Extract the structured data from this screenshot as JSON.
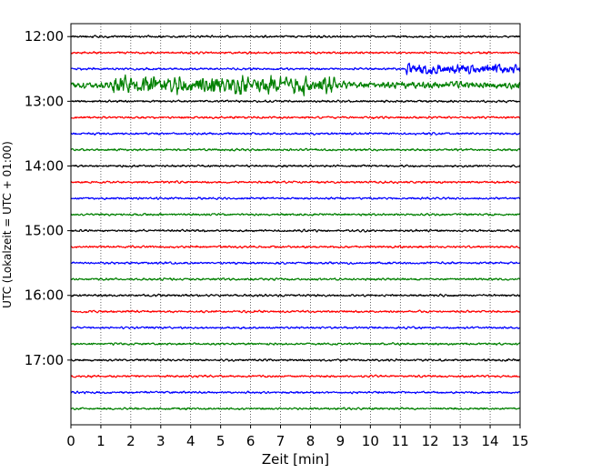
{
  "chart_data": {
    "type": "line",
    "title": "",
    "xlabel": "Zeit  [min]",
    "ylabel": "UTC (Lokalzeit = UTC + 01:00)",
    "xlim": [
      0,
      15
    ],
    "x_ticks": [
      "0",
      "1",
      "2",
      "3",
      "4",
      "5",
      "6",
      "7",
      "8",
      "9",
      "10",
      "11",
      "12",
      "13",
      "14",
      "15"
    ],
    "y_ticks": [
      "12:00",
      "13:00",
      "14:00",
      "15:00",
      "16:00",
      "17:00"
    ],
    "ylim_hours": [
      "11:48",
      "18:00"
    ],
    "grid": "vertical dotted at each minute",
    "trace_interval_min": 15,
    "trace_colors": [
      "#000000",
      "#ff0000",
      "#0000ff",
      "#008000"
    ],
    "traces": [
      {
        "start": "12:00",
        "color": "#000000",
        "amplitude": "low"
      },
      {
        "start": "12:15",
        "color": "#ff0000",
        "amplitude": "low"
      },
      {
        "start": "12:30",
        "color": "#0000ff",
        "amplitude": "low",
        "burst": {
          "from_min": 11.2,
          "to_min": 15.0,
          "level": "medium"
        }
      },
      {
        "start": "12:45",
        "color": "#008000",
        "amplitude": "high",
        "burst": {
          "from_min": 1.4,
          "to_min": 8.8,
          "level": "very high"
        }
      },
      {
        "start": "13:00",
        "color": "#000000",
        "amplitude": "low"
      },
      {
        "start": "13:15",
        "color": "#ff0000",
        "amplitude": "low"
      },
      {
        "start": "13:30",
        "color": "#0000ff",
        "amplitude": "low"
      },
      {
        "start": "13:45",
        "color": "#008000",
        "amplitude": "low"
      },
      {
        "start": "14:00",
        "color": "#000000",
        "amplitude": "low"
      },
      {
        "start": "14:15",
        "color": "#ff0000",
        "amplitude": "low"
      },
      {
        "start": "14:30",
        "color": "#0000ff",
        "amplitude": "low"
      },
      {
        "start": "14:45",
        "color": "#008000",
        "amplitude": "low"
      },
      {
        "start": "15:00",
        "color": "#000000",
        "amplitude": "low"
      },
      {
        "start": "15:15",
        "color": "#ff0000",
        "amplitude": "low"
      },
      {
        "start": "15:30",
        "color": "#0000ff",
        "amplitude": "low"
      },
      {
        "start": "15:45",
        "color": "#008000",
        "amplitude": "low"
      },
      {
        "start": "16:00",
        "color": "#000000",
        "amplitude": "low"
      },
      {
        "start": "16:15",
        "color": "#ff0000",
        "amplitude": "low"
      },
      {
        "start": "16:30",
        "color": "#0000ff",
        "amplitude": "low"
      },
      {
        "start": "16:45",
        "color": "#008000",
        "amplitude": "low"
      },
      {
        "start": "17:00",
        "color": "#000000",
        "amplitude": "low"
      },
      {
        "start": "17:15",
        "color": "#ff0000",
        "amplitude": "low"
      },
      {
        "start": "17:30",
        "color": "#0000ff",
        "amplitude": "low"
      },
      {
        "start": "17:45",
        "color": "#008000",
        "amplitude": "low"
      }
    ]
  }
}
